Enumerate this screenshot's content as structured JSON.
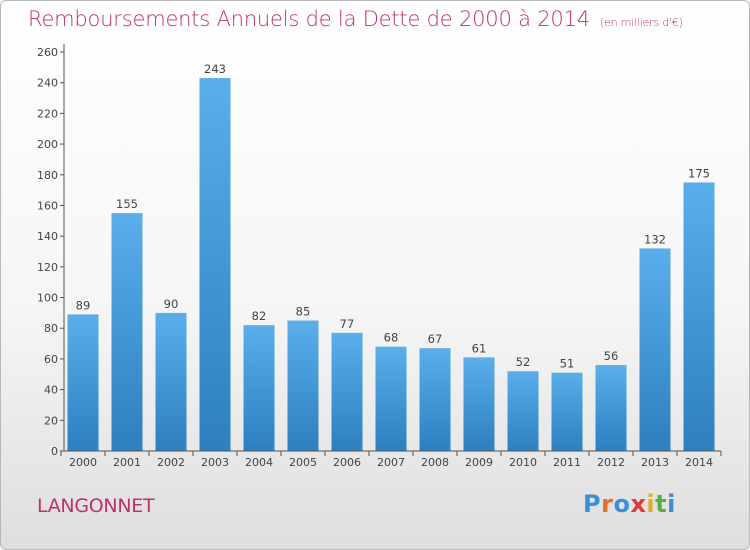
{
  "chart_data": {
    "type": "bar",
    "title": "Remboursements Annuels de la Dette de 2000 à 2014",
    "unit_note": "(en milliers d'€)",
    "categories": [
      "2000",
      "2001",
      "2002",
      "2003",
      "2004",
      "2005",
      "2006",
      "2007",
      "2008",
      "2009",
      "2010",
      "2011",
      "2012",
      "2013",
      "2014"
    ],
    "values": [
      89,
      155,
      90,
      243,
      82,
      85,
      77,
      68,
      67,
      61,
      52,
      51,
      56,
      132,
      175
    ],
    "ylim": [
      0,
      260
    ],
    "yticks": [
      0,
      20,
      40,
      60,
      80,
      100,
      120,
      140,
      160,
      180,
      200,
      220,
      240,
      260
    ],
    "xlabel": "",
    "ylabel": "",
    "grid": false,
    "colors": {
      "bar_top": "#5aaeea",
      "bar_bottom": "#2d7fc0",
      "axis": "#555555",
      "title": "#c0306b"
    }
  },
  "commune": "LANGONNET",
  "logo": {
    "letters": [
      "P",
      "r",
      "o",
      "x",
      "i",
      "t",
      "i"
    ],
    "colors": [
      "#3a8fd8",
      "#e0702a",
      "#3a8fd8",
      "#e03a3a",
      "#e0b020",
      "#58b040",
      "#3a8fd8"
    ]
  }
}
